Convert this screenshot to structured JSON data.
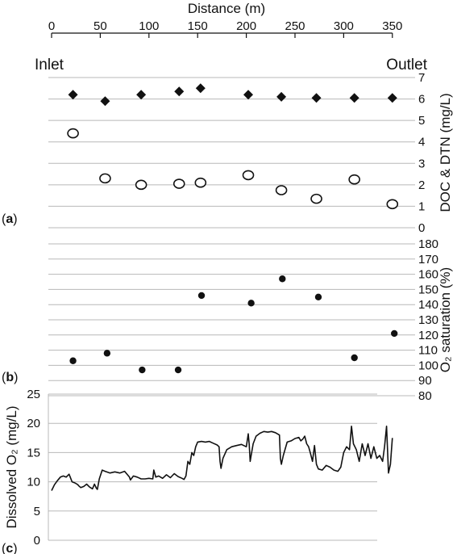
{
  "distance_axis": {
    "title": "Distance (m)",
    "ticks": [
      0,
      50,
      100,
      150,
      200,
      250,
      300,
      350
    ],
    "range": [
      0,
      350
    ]
  },
  "end_labels": {
    "inlet": "Inlet",
    "outlet": "Outlet"
  },
  "chart_data": [
    {
      "panel": "a",
      "panel_label": "(a)",
      "type": "scatter",
      "ylabel": "DOC & DTN (mg/L)",
      "ylim": [
        0,
        7
      ],
      "yticks": [
        0,
        1,
        2,
        3,
        4,
        5,
        6,
        7
      ],
      "y_axis_side": "right",
      "grid": true,
      "series": [
        {
          "marker": "filled-diamond",
          "x": [
            22,
            55,
            92,
            131,
            153,
            202,
            236,
            272,
            311,
            350
          ],
          "y": [
            6.2,
            5.9,
            6.2,
            6.35,
            6.5,
            6.2,
            6.1,
            6.05,
            6.05,
            6.05
          ]
        },
        {
          "marker": "open-circle",
          "x": [
            22,
            55,
            92,
            131,
            153,
            202,
            236,
            272,
            311,
            350
          ],
          "y": [
            4.4,
            2.3,
            2.0,
            2.05,
            2.1,
            2.45,
            1.75,
            1.35,
            2.25,
            1.1
          ]
        }
      ]
    },
    {
      "panel": "b",
      "panel_label": "(b)",
      "type": "scatter",
      "ylabel": "O₂ saturation (%)",
      "ylim": [
        80,
        180
      ],
      "yticks": [
        80,
        90,
        100,
        110,
        120,
        130,
        140,
        150,
        160,
        170,
        180
      ],
      "y_axis_side": "right",
      "grid": true,
      "series": [
        {
          "marker": "filled-dot",
          "x": [
            22,
            57,
            93,
            130,
            154,
            205,
            237,
            274,
            311,
            352
          ],
          "y": [
            103,
            108,
            97,
            97,
            146,
            141,
            157,
            145,
            105,
            121
          ]
        }
      ]
    },
    {
      "panel": "c",
      "panel_label": "(c)",
      "type": "line",
      "ylabel": "Dissolved O₂ (mg/L)",
      "ylim": [
        0,
        25
      ],
      "yticks": [
        0,
        5,
        10,
        15,
        20,
        25
      ],
      "y_axis_side": "left",
      "grid": true,
      "series": [
        {
          "marker": "line",
          "x": [
            0,
            3,
            6,
            9,
            12,
            15,
            18,
            21,
            24,
            27,
            28,
            30,
            33,
            36,
            39,
            42,
            44,
            46,
            47,
            49,
            52,
            55,
            60,
            65,
            70,
            75,
            78,
            80,
            81,
            84,
            88,
            92,
            96,
            100,
            104,
            105,
            107,
            110,
            114,
            118,
            122,
            126,
            130,
            134,
            136,
            138,
            140,
            142,
            144,
            146,
            148,
            150,
            154,
            158,
            162,
            166,
            170,
            172,
            173,
            174,
            176,
            180,
            185,
            190,
            195,
            200,
            202,
            203,
            204,
            205,
            207,
            210,
            214,
            218,
            222,
            226,
            230,
            234,
            235,
            236,
            238,
            242,
            246,
            250,
            254,
            256,
            258,
            260,
            262,
            264,
            266,
            268,
            270,
            272,
            274,
            278,
            282,
            286,
            290,
            294,
            297,
            300,
            303,
            306,
            308,
            310,
            313,
            316,
            319,
            322,
            325,
            328,
            331,
            334,
            337,
            340,
            342,
            344,
            346,
            348,
            350
          ],
          "y": [
            8.5,
            9.5,
            10.2,
            10.8,
            11.0,
            10.8,
            11.3,
            10.0,
            9.8,
            9.5,
            9.3,
            9.0,
            9.2,
            9.6,
            9.1,
            8.8,
            9.6,
            8.9,
            8.7,
            10.5,
            12.0,
            11.8,
            11.5,
            11.7,
            11.5,
            11.8,
            11.2,
            10.8,
            10.3,
            11.0,
            10.8,
            10.5,
            10.5,
            10.6,
            10.5,
            12.0,
            10.8,
            11.0,
            10.6,
            11.2,
            10.7,
            11.4,
            10.9,
            10.6,
            10.4,
            11.0,
            13.5,
            13.0,
            15.0,
            14.5,
            16.0,
            16.8,
            16.9,
            16.8,
            16.9,
            16.6,
            16.3,
            16.0,
            13.5,
            12.3,
            14.0,
            15.5,
            16.0,
            16.2,
            16.4,
            16.0,
            18.2,
            16.4,
            13.5,
            14.5,
            16.5,
            17.8,
            18.3,
            18.6,
            18.5,
            18.6,
            18.4,
            18.0,
            14.0,
            13.0,
            14.5,
            16.8,
            17.0,
            17.4,
            17.6,
            17.0,
            17.3,
            17.8,
            16.5,
            16.0,
            14.8,
            13.5,
            16.2,
            13.0,
            12.2,
            12.0,
            12.8,
            12.5,
            12.0,
            11.8,
            12.5,
            15.0,
            16.0,
            15.5,
            19.5,
            16.5,
            15.5,
            13.5,
            16.5,
            14.5,
            16.5,
            14.0,
            16.0,
            14.0,
            14.5,
            13.5,
            16.0,
            19.5,
            11.5,
            13.0,
            17.5
          ]
        }
      ]
    }
  ]
}
